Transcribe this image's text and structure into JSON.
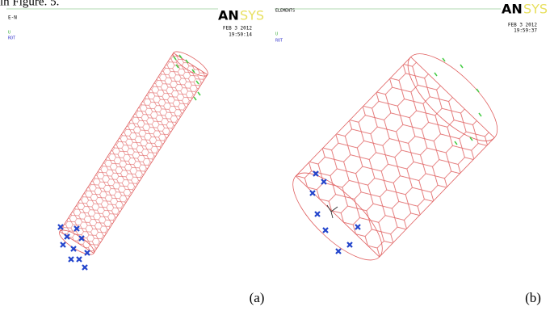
{
  "caption_top": "in Figure. 5.",
  "panels": [
    {
      "mode": "E-N",
      "legend": [
        "U",
        "ROT"
      ],
      "logo": {
        "left": "AN",
        "right": "SYS"
      },
      "date": "FEB  3 2012",
      "time": "19:50:14",
      "label": "(a)"
    },
    {
      "mode": "ELEMENTS",
      "legend": [
        "U",
        "ROT"
      ],
      "logo": {
        "left": "AN",
        "right": "SYS"
      },
      "date": "FEB  3 2012",
      "time": "19:59:37",
      "label": "(b)"
    }
  ]
}
